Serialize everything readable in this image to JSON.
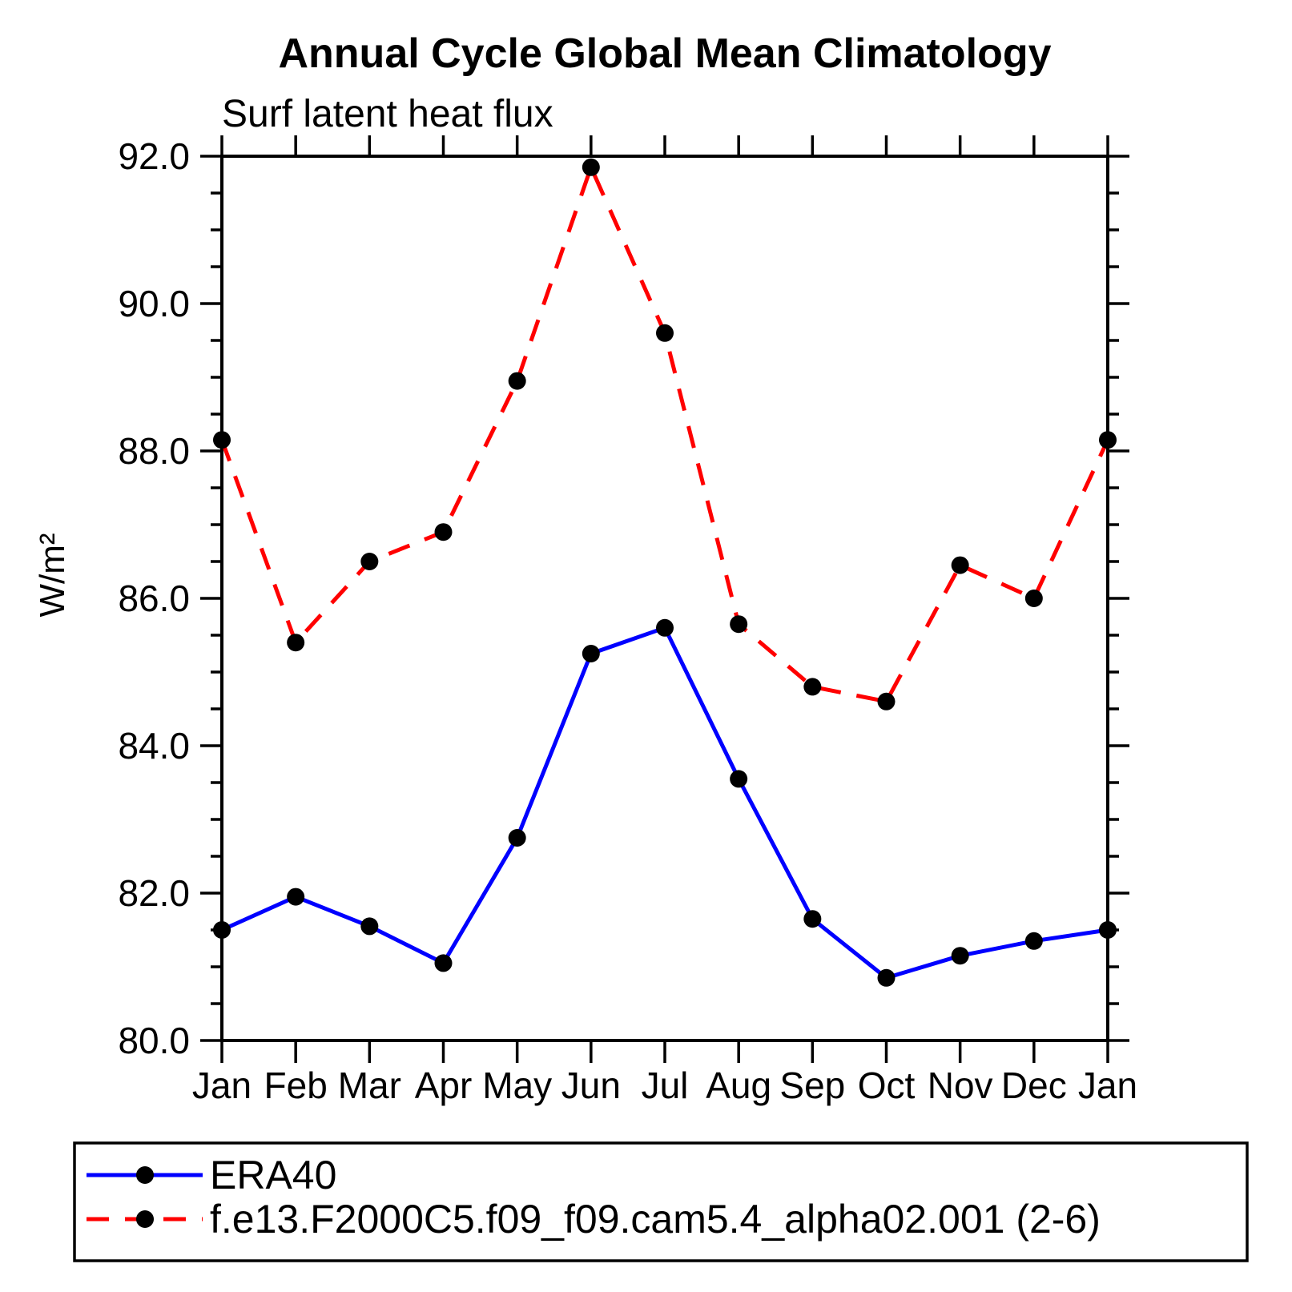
{
  "page": {
    "background": "#ffffff"
  },
  "chart_data": {
    "type": "line",
    "title": "Annual Cycle Global Mean Climatology",
    "subtitle": "Surf latent heat flux",
    "ylabel": "W/m²",
    "categories": [
      "Jan",
      "Feb",
      "Mar",
      "Apr",
      "May",
      "Jun",
      "Jul",
      "Aug",
      "Sep",
      "Oct",
      "Nov",
      "Dec",
      "Jan"
    ],
    "ylim": [
      80.0,
      92.0
    ],
    "ymajor_ticks": [
      80.0,
      82.0,
      84.0,
      86.0,
      88.0,
      90.0,
      92.0
    ],
    "ytick_labels": [
      "80.0",
      "82.0",
      "84.0",
      "86.0",
      "88.0",
      "90.0",
      "92.0"
    ],
    "yminor_step": 0.5,
    "grid": false,
    "axis_color": "#000000",
    "marker_color": "#000000",
    "legend_position": "bottom-left-box",
    "series": [
      {
        "name": "ERA40",
        "color": "#0000ff",
        "line_style": "solid",
        "marker": "circle",
        "values": [
          81.5,
          81.95,
          81.55,
          81.05,
          82.75,
          85.25,
          85.6,
          83.55,
          81.65,
          80.85,
          81.15,
          81.35,
          81.5
        ]
      },
      {
        "name": "f.e13.F2000C5.f09_f09.cam5.4_alpha02.001 (2-6)",
        "color": "#ff0000",
        "line_style": "dashed",
        "marker": "circle",
        "values": [
          88.15,
          85.4,
          86.5,
          86.9,
          88.95,
          91.85,
          89.6,
          85.65,
          84.8,
          84.6,
          86.45,
          86.0,
          88.15
        ]
      }
    ]
  }
}
